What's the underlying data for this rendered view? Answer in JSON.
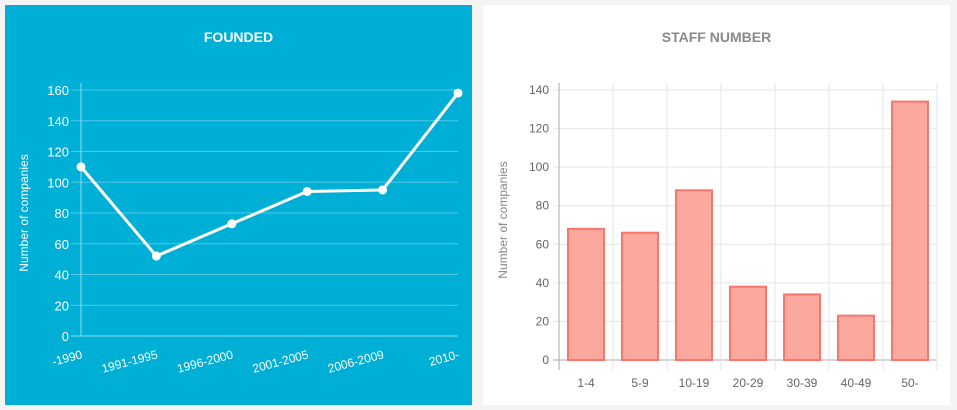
{
  "chart_data": [
    {
      "type": "line",
      "title": "FOUNDED",
      "xlabel": "",
      "ylabel": "Number of companies",
      "categories": [
        "-1990",
        "1991-1995",
        "1996-2000",
        "2001-2005",
        "2006-2009",
        "2010-"
      ],
      "values": [
        110,
        52,
        73,
        94,
        95,
        158
      ],
      "ylim": [
        0,
        160
      ],
      "yticks": [
        0,
        20,
        40,
        60,
        80,
        100,
        120,
        140,
        160
      ],
      "grid": true,
      "colors": {
        "background": "#00afd5",
        "line": "#ffffff",
        "grid": "#4fcbe6"
      }
    },
    {
      "type": "bar",
      "title": "STAFF NUMBER",
      "xlabel": "",
      "ylabel": "Number of companies",
      "categories": [
        "1-4",
        "5-9",
        "10-19",
        "20-29",
        "30-39",
        "40-49",
        "50-"
      ],
      "values": [
        68,
        66,
        88,
        38,
        34,
        23,
        134
      ],
      "ylim": [
        0,
        140
      ],
      "yticks": [
        0,
        20,
        40,
        60,
        80,
        100,
        120,
        140
      ],
      "grid": true,
      "colors": {
        "bar_fill": "#fba99e",
        "bar_stroke": "#f8766b",
        "grid": "#e6e6e6"
      }
    }
  ]
}
